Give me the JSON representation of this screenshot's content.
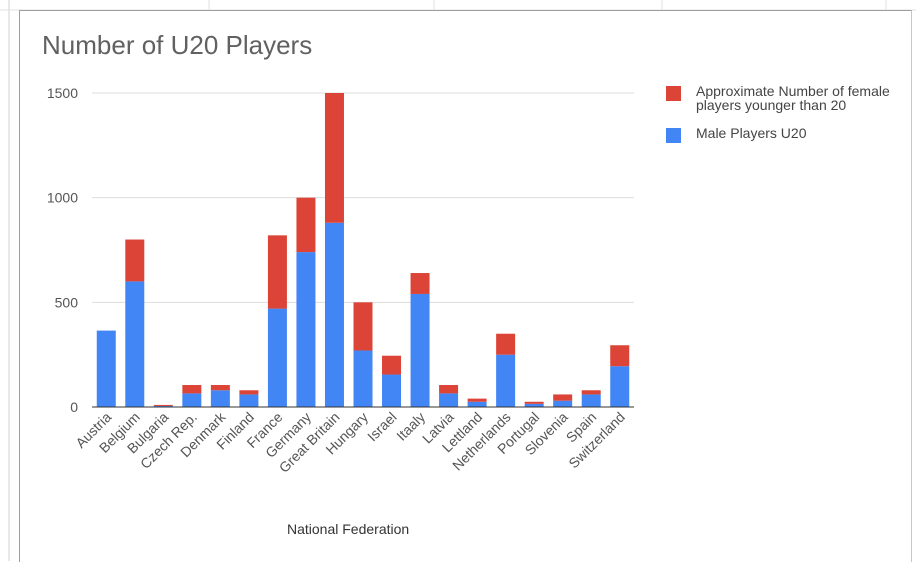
{
  "chart_data": {
    "type": "bar",
    "stacked": true,
    "title": "Number of U20 Players",
    "xlabel": "National Federation",
    "ylabel": "",
    "ylim": [
      0,
      1500
    ],
    "yticks": [
      0,
      500,
      1000,
      1500
    ],
    "grid": true,
    "legend_position": "right",
    "categories": [
      "Austria",
      "Belgium",
      "Bulgaria",
      "Czech Rep.",
      "Denmark",
      "Finland",
      "France",
      "Germany",
      "Great Britain",
      "Hungary",
      "Israel",
      "Itaaly",
      "Latvia",
      "Lettland",
      "Netherlands",
      "Portugal",
      "Slovenia",
      "Spain",
      "Switzerland"
    ],
    "series": [
      {
        "name": "Male Players U20",
        "color": "#4285f4",
        "values": [
          365,
          600,
          5,
          65,
          80,
          60,
          470,
          740,
          880,
          270,
          155,
          540,
          65,
          25,
          250,
          15,
          30,
          60,
          195
        ]
      },
      {
        "name": "Approximate Number of female players younger than 20",
        "color": "#db4437",
        "values": [
          0,
          200,
          5,
          40,
          25,
          20,
          350,
          260,
          620,
          230,
          90,
          100,
          40,
          15,
          100,
          10,
          30,
          20,
          100
        ]
      }
    ],
    "legend_order": [
      1,
      0
    ]
  }
}
